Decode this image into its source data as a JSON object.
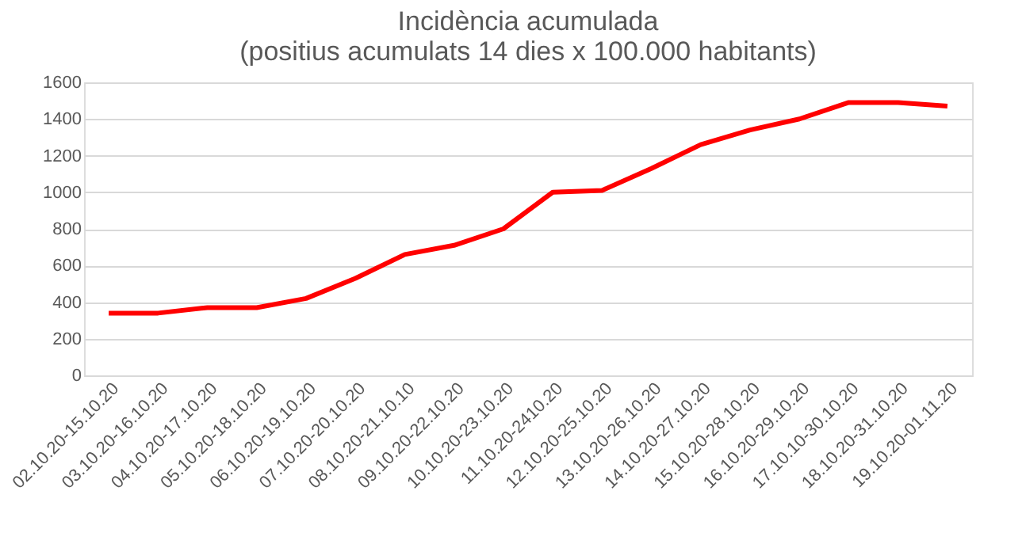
{
  "chart_data": {
    "type": "line",
    "title": [
      "Incidència acumulada",
      "(positius acumulats 14 dies x 100.000 habitants)"
    ],
    "categories": [
      "02.10.20-15.10.20",
      "03.10.20-16.10.20",
      "04.10.20-17.10.20",
      "05.10.20-18.10.20",
      "06.10.20-19.10.20",
      "07.10.20-20.10.20",
      "08.10.20-21.10.10",
      "09.10.20-22.10.20",
      "10.10.20-23.10.20",
      "11.10.20-2410.20",
      "12.10.20-25.10.20",
      "13.10.20-26.10.20",
      "14.10.20-27.10.20",
      "15.10.20-28.10.20",
      "16.10.20-29.10.20",
      "17.10.10-30.10.20",
      "18.10.20-31.10.20",
      "19.10.20-01.11.20"
    ],
    "series": [
      {
        "color": "#ff0000",
        "values": [
          340,
          340,
          370,
          370,
          420,
          530,
          660,
          710,
          800,
          1000,
          1010,
          1130,
          1260,
          1340,
          1400,
          1490,
          1490,
          1470
        ]
      }
    ],
    "ylim": [
      0,
      1600
    ],
    "yticks": [
      0,
      200,
      400,
      600,
      800,
      1000,
      1200,
      1400,
      1600
    ],
    "grid": "y",
    "marker": "none",
    "line_style": "solid"
  }
}
